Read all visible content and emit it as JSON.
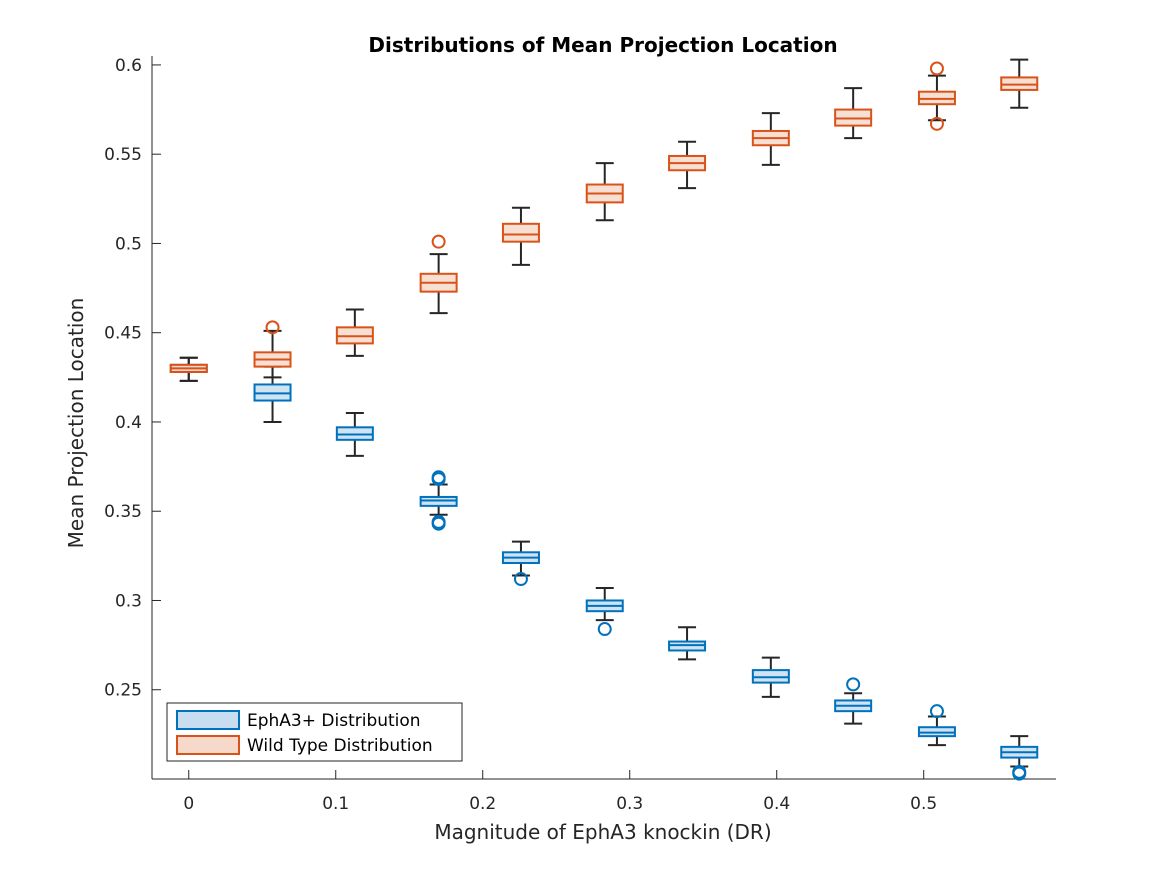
{
  "chart_data": {
    "type": "box",
    "title": "Distributions of Mean Projection Location",
    "xlabel": "Magnitude of EphA3 knockin (DR)",
    "ylabel": "Mean Projection Location",
    "xlim": [
      -0.025,
      0.59
    ],
    "ylim": [
      0.2,
      0.605
    ],
    "xticks": [
      0,
      0.1,
      0.2,
      0.3,
      0.4,
      0.5
    ],
    "yticks": [
      0.25,
      0.3,
      0.35,
      0.4,
      0.45,
      0.5,
      0.55,
      0.6
    ],
    "legend": {
      "position": "bottom-left",
      "entries": [
        "EphA3+ Distribution",
        "Wild Type Distribution"
      ]
    },
    "grid": false,
    "series": [
      {
        "name": "EphA3+ Distribution",
        "color": "#0072BD",
        "fill": "#C8DEF0",
        "boxes": [
          {
            "x": 0.0,
            "whisker_low": 0.423,
            "q1": 0.428,
            "median": 0.43,
            "q3": 0.432,
            "whisker_high": 0.436,
            "outliers": []
          },
          {
            "x": 0.057,
            "whisker_low": 0.4,
            "q1": 0.412,
            "median": 0.416,
            "q3": 0.421,
            "whisker_high": 0.431,
            "outliers": []
          },
          {
            "x": 0.113,
            "whisker_low": 0.381,
            "q1": 0.39,
            "median": 0.393,
            "q3": 0.397,
            "whisker_high": 0.405,
            "outliers": []
          },
          {
            "x": 0.17,
            "whisker_low": 0.348,
            "q1": 0.353,
            "median": 0.356,
            "q3": 0.358,
            "whisker_high": 0.365,
            "outliers": [
              0.343,
              0.344,
              0.368,
              0.369
            ]
          },
          {
            "x": 0.226,
            "whisker_low": 0.314,
            "q1": 0.321,
            "median": 0.324,
            "q3": 0.327,
            "whisker_high": 0.333,
            "outliers": [
              0.312
            ]
          },
          {
            "x": 0.283,
            "whisker_low": 0.289,
            "q1": 0.294,
            "median": 0.297,
            "q3": 0.3,
            "whisker_high": 0.307,
            "outliers": [
              0.284
            ]
          },
          {
            "x": 0.339,
            "whisker_low": 0.267,
            "q1": 0.272,
            "median": 0.275,
            "q3": 0.277,
            "whisker_high": 0.285,
            "outliers": []
          },
          {
            "x": 0.396,
            "whisker_low": 0.246,
            "q1": 0.254,
            "median": 0.257,
            "q3": 0.261,
            "whisker_high": 0.268,
            "outliers": []
          },
          {
            "x": 0.452,
            "whisker_low": 0.231,
            "q1": 0.238,
            "median": 0.241,
            "q3": 0.244,
            "whisker_high": 0.248,
            "outliers": [
              0.253
            ]
          },
          {
            "x": 0.509,
            "whisker_low": 0.219,
            "q1": 0.224,
            "median": 0.226,
            "q3": 0.229,
            "whisker_high": 0.235,
            "outliers": [
              0.238
            ]
          },
          {
            "x": 0.565,
            "whisker_low": 0.207,
            "q1": 0.212,
            "median": 0.215,
            "q3": 0.218,
            "whisker_high": 0.224,
            "outliers": [
              0.203,
              0.204
            ]
          }
        ]
      },
      {
        "name": "Wild Type Distribution",
        "color": "#D95319",
        "fill": "#F7D9CC",
        "boxes": [
          {
            "x": 0.0,
            "whisker_low": 0.423,
            "q1": 0.428,
            "median": 0.43,
            "q3": 0.432,
            "whisker_high": 0.436,
            "outliers": []
          },
          {
            "x": 0.057,
            "whisker_low": 0.425,
            "q1": 0.431,
            "median": 0.435,
            "q3": 0.439,
            "whisker_high": 0.451,
            "outliers": [
              0.453
            ]
          },
          {
            "x": 0.113,
            "whisker_low": 0.437,
            "q1": 0.444,
            "median": 0.448,
            "q3": 0.453,
            "whisker_high": 0.463,
            "outliers": []
          },
          {
            "x": 0.17,
            "whisker_low": 0.461,
            "q1": 0.473,
            "median": 0.478,
            "q3": 0.483,
            "whisker_high": 0.494,
            "outliers": [
              0.501
            ]
          },
          {
            "x": 0.226,
            "whisker_low": 0.488,
            "q1": 0.501,
            "median": 0.505,
            "q3": 0.511,
            "whisker_high": 0.52,
            "outliers": []
          },
          {
            "x": 0.283,
            "whisker_low": 0.513,
            "q1": 0.523,
            "median": 0.528,
            "q3": 0.533,
            "whisker_high": 0.545,
            "outliers": []
          },
          {
            "x": 0.339,
            "whisker_low": 0.531,
            "q1": 0.541,
            "median": 0.545,
            "q3": 0.549,
            "whisker_high": 0.557,
            "outliers": []
          },
          {
            "x": 0.396,
            "whisker_low": 0.544,
            "q1": 0.555,
            "median": 0.559,
            "q3": 0.563,
            "whisker_high": 0.573,
            "outliers": []
          },
          {
            "x": 0.452,
            "whisker_low": 0.559,
            "q1": 0.566,
            "median": 0.57,
            "q3": 0.575,
            "whisker_high": 0.587,
            "outliers": []
          },
          {
            "x": 0.509,
            "whisker_low": 0.569,
            "q1": 0.578,
            "median": 0.581,
            "q3": 0.585,
            "whisker_high": 0.594,
            "outliers": [
              0.567,
              0.598
            ]
          },
          {
            "x": 0.565,
            "whisker_low": 0.576,
            "q1": 0.586,
            "median": 0.589,
            "q3": 0.593,
            "whisker_high": 0.603,
            "outliers": []
          }
        ]
      }
    ]
  }
}
